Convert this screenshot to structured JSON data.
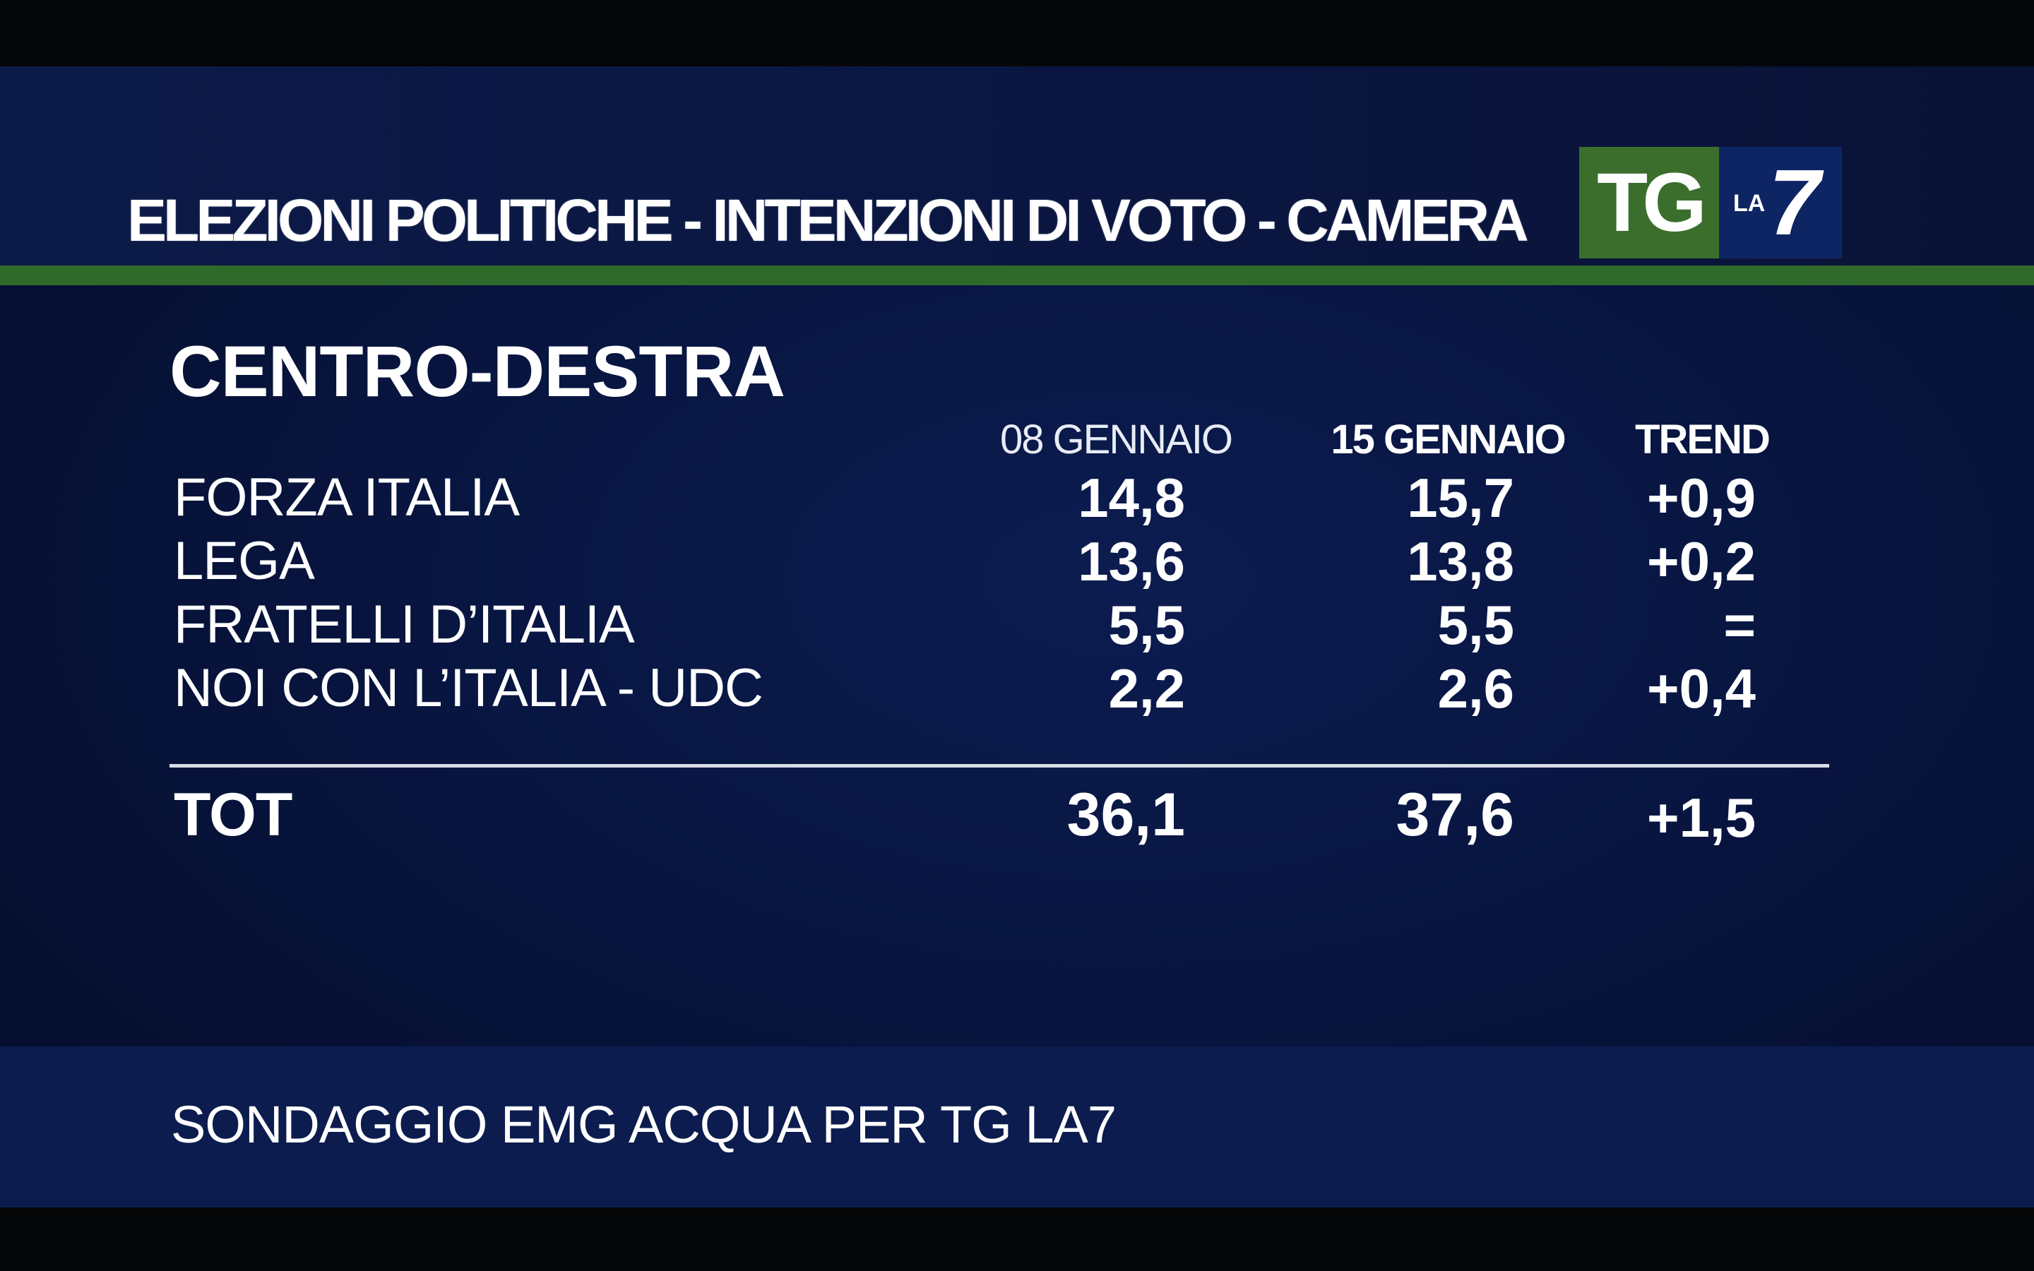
{
  "header": {
    "title": "ELEZIONI POLITICHE - INTENZIONI DI VOTO - CAMERA"
  },
  "logo": {
    "tg": "TG",
    "la": "LA",
    "seven": "7"
  },
  "colors": {
    "background": "#081540",
    "accent_green": "#2f6a2a",
    "logo_green": "#3b6e2c",
    "logo_blue": "#0e2564",
    "text": "#ffffff"
  },
  "chart_data": {
    "type": "table",
    "title": "CENTRO-DESTRA",
    "columns": [
      "08 GENNAIO",
      "15 GENNAIO",
      "TREND"
    ],
    "rows": [
      {
        "label": "FORZA ITALIA",
        "values": [
          "14,8",
          "15,7",
          "+0,9"
        ]
      },
      {
        "label": "LEGA",
        "values": [
          "13,6",
          "13,8",
          "+0,2"
        ]
      },
      {
        "label": "FRATELLI D’ITALIA",
        "values": [
          "5,5",
          "5,5",
          "="
        ]
      },
      {
        "label": "NOI CON L’ITALIA - UDC",
        "values": [
          "2,2",
          "2,6",
          "+0,4"
        ]
      }
    ],
    "total": {
      "label": "TOT",
      "values": [
        "36,1",
        "37,6",
        "+1,5"
      ]
    }
  },
  "footer": {
    "source": "SONDAGGIO EMG ACQUA PER TG LA7"
  }
}
